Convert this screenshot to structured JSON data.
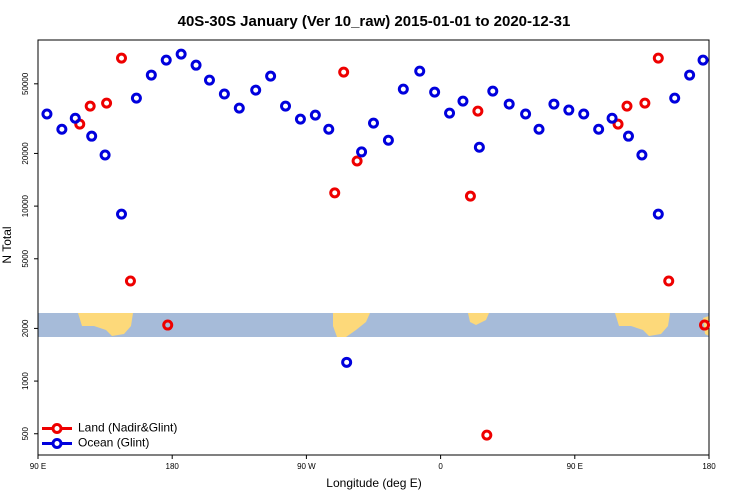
{
  "chart_data": {
    "type": "scatter",
    "title": "40S-30S January (Ver 10_raw)   2015-01-01 to 2020-12-31",
    "x_label": "Longitude (deg E)",
    "y_label": "N Total",
    "y_scale": "log",
    "legend_position": "lower left",
    "xlim": [
      90,
      540
    ],
    "xticks": [
      {
        "value": 90,
        "label": "90 E"
      },
      {
        "value": 180,
        "label": "180"
      },
      {
        "value": 270,
        "label": "90 W"
      },
      {
        "value": 360,
        "label": "0"
      },
      {
        "value": 450,
        "label": "90 E"
      },
      {
        "value": 540,
        "label": "180"
      }
    ],
    "ylim": [
      378,
      89000
    ],
    "yticks": [
      500,
      1000,
      2000,
      5000,
      10000,
      20000,
      50000
    ],
    "series": [
      {
        "name": "Land (Nadir&Glint)",
        "color": "#ee0000",
        "x": [
          118,
          125,
          136,
          146,
          152,
          177,
          289,
          295,
          304,
          380,
          385,
          391,
          479,
          485,
          497,
          506,
          513,
          537
        ],
        "values": [
          29400,
          37300,
          38800,
          70100,
          3730,
          2090,
          11900,
          58300,
          18100,
          11400,
          34900,
          491,
          29400,
          37300,
          38800,
          70100,
          3730,
          2090
        ]
      },
      {
        "name": "Ocean (Glint)",
        "color": "#0000dd",
        "x": [
          96,
          106,
          115,
          126,
          135,
          146,
          156,
          166,
          176,
          186,
          196,
          205,
          215,
          225,
          236,
          246,
          256,
          266,
          276,
          285,
          297,
          307,
          315,
          325,
          335,
          346,
          356,
          366,
          375,
          386,
          395,
          406,
          417,
          426,
          436,
          446,
          456,
          466,
          475,
          486,
          495,
          506,
          517,
          527,
          536
        ],
        "values": [
          33600,
          27500,
          31800,
          25100,
          19600,
          9000,
          41400,
          56100,
          68300,
          73900,
          63900,
          52500,
          43700,
          36300,
          46000,
          55300,
          37300,
          31400,
          33100,
          27500,
          1280,
          20400,
          29800,
          23800,
          46600,
          59100,
          44800,
          34000,
          39800,
          21700,
          45400,
          38300,
          33600,
          27500,
          38300,
          35400,
          33600,
          27500,
          31800,
          25100,
          19600,
          9000,
          41400,
          56100,
          68300
        ]
      }
    ]
  }
}
